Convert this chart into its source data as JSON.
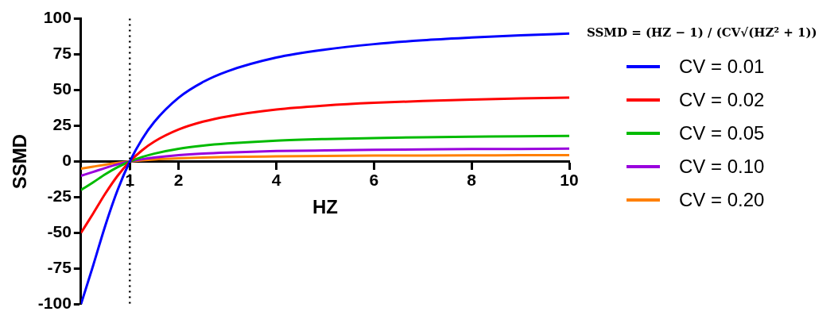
{
  "chart_data": {
    "type": "line",
    "xlabel": "HZ",
    "ylabel": "SSMD",
    "annotations": [
      "SSMD = (HZ − 1) / (CV√(HZ² + 1))"
    ],
    "x": [
      0,
      0.25,
      0.5,
      0.75,
      1,
      1.25,
      1.5,
      2,
      2.5,
      3,
      4,
      5,
      6,
      7,
      8,
      9,
      10
    ],
    "xlim": [
      0,
      10
    ],
    "xticks": [
      1,
      2,
      4,
      6,
      8,
      10
    ],
    "ylim": [
      -100,
      100
    ],
    "yticks": [
      -100,
      -75,
      -50,
      -25,
      0,
      25,
      50,
      75,
      100
    ],
    "ref_lines": [
      {
        "axis": "x",
        "value": 1,
        "color": "#000000",
        "line_style": "dotted"
      }
    ],
    "legend": "right",
    "marker": "none",
    "line_style": "solid",
    "grid": false,
    "series": [
      {
        "name": "CV = 0.01",
        "color": "#0000ff",
        "values": [
          -100,
          -72.8,
          -44.7,
          -20,
          0,
          15.6,
          27.7,
          44.7,
          55.7,
          63.2,
          72.8,
          78.4,
          82.2,
          84.9,
          86.8,
          88.4,
          89.6
        ]
      },
      {
        "name": "CV = 0.02",
        "color": "#ff0000",
        "values": [
          -50,
          -36.4,
          -22.4,
          -10,
          0,
          7.8,
          13.9,
          22.4,
          27.9,
          31.6,
          36.4,
          39.2,
          41.1,
          42.4,
          43.4,
          44.2,
          44.8
        ]
      },
      {
        "name": "CV = 0.05",
        "color": "#00bb00",
        "values": [
          -20,
          -14.6,
          -8.9,
          -4,
          0,
          3.1,
          5.5,
          8.9,
          11.1,
          12.6,
          14.6,
          15.7,
          16.4,
          17,
          17.4,
          17.7,
          17.9
        ]
      },
      {
        "name": "CV = 0.10",
        "color": "#9900dd",
        "values": [
          -10,
          -7.3,
          -4.5,
          -2,
          0,
          1.6,
          2.8,
          4.5,
          5.6,
          6.3,
          7.3,
          7.8,
          8.2,
          8.5,
          8.7,
          8.8,
          9
        ]
      },
      {
        "name": "CV = 0.20",
        "color": "#ff8000",
        "values": [
          -5,
          -3.6,
          -2.2,
          -1,
          0,
          0.8,
          1.4,
          2.2,
          2.8,
          3.2,
          3.6,
          3.9,
          4.1,
          4.2,
          4.3,
          4.4,
          4.5
        ]
      }
    ]
  }
}
